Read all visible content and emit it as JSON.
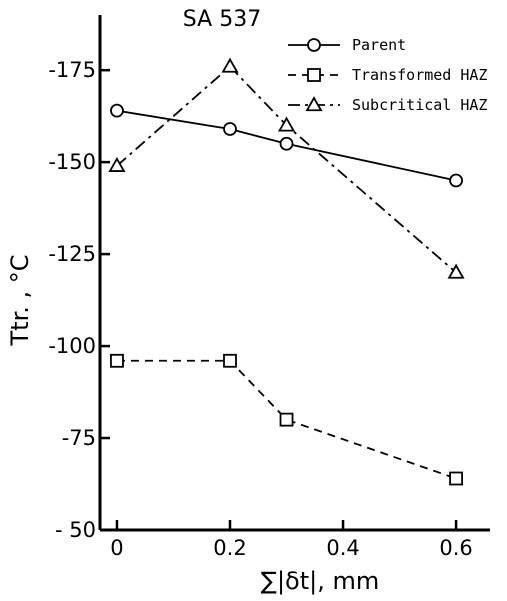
{
  "chart_data": {
    "type": "line",
    "title": "SA 537",
    "xlabel": "∑|δt|, mm",
    "ylabel": "Ttr. , °C",
    "xlim": [
      -0.03,
      0.66
    ],
    "ylim": [
      50,
      190
    ],
    "x_ticks": [
      0,
      0.2,
      0.4,
      0.6
    ],
    "x_tick_labels": [
      "0",
      "0.2",
      "0.4",
      "0.6"
    ],
    "y_ticks": [
      50,
      75,
      100,
      125,
      150,
      175
    ],
    "y_tick_labels": [
      "- 50",
      "-75",
      "-100",
      "-125",
      "-150",
      "-175"
    ],
    "grid": false,
    "legend_position": "top-right",
    "series": [
      {
        "name": "Parent",
        "marker": "circle",
        "dash": "solid",
        "x": [
          0,
          0.2,
          0.3,
          0.6
        ],
        "y": [
          164,
          159,
          155,
          145
        ]
      },
      {
        "name": "Transformed HAZ",
        "marker": "square",
        "dash": "dashed",
        "x": [
          0,
          0.2,
          0.3,
          0.6
        ],
        "y": [
          96,
          96,
          80,
          64
        ]
      },
      {
        "name": "Subcritical HAZ",
        "marker": "triangle",
        "dash": "dashdot",
        "x": [
          0,
          0.2,
          0.3,
          0.6
        ],
        "y": [
          149,
          176,
          160,
          120
        ]
      }
    ]
  }
}
